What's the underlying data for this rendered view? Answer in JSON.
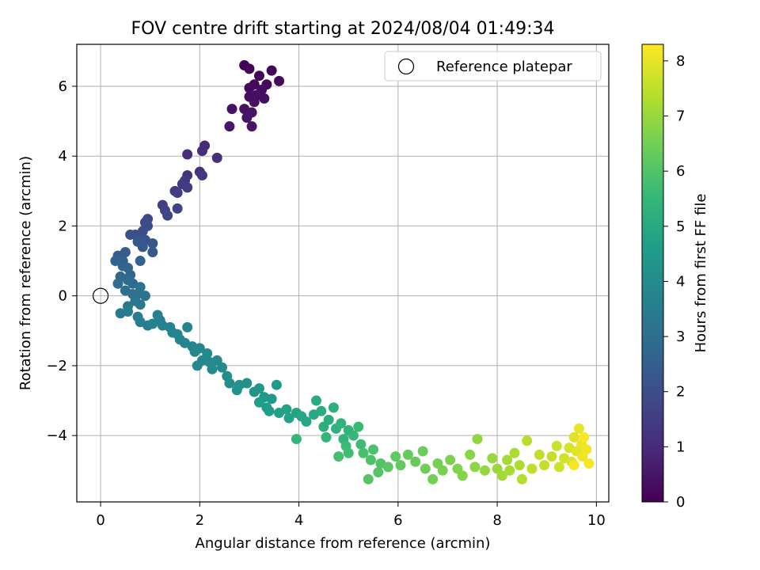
{
  "chart_data": {
    "type": "scatter",
    "title": "FOV centre drift starting at 2024/08/04 01:49:34",
    "xlabel": "Angular distance from reference (arcmin)",
    "ylabel": "Rotation from reference (arcmin)",
    "xlim": [
      -0.48,
      10.25
    ],
    "ylim": [
      -5.9,
      7.2
    ],
    "xticks": [
      0,
      2,
      4,
      6,
      8,
      10
    ],
    "yticks": [
      -4,
      -2,
      0,
      2,
      4,
      6
    ],
    "grid": true,
    "legend": {
      "position": "top-right",
      "entries": [
        "Reference platepar"
      ]
    },
    "reference_point": {
      "x": 0,
      "y": 0
    },
    "colorbar": {
      "label": "Hours from first FF file",
      "colormap": "viridis",
      "range": [
        0,
        8.3
      ],
      "ticks": [
        0,
        1,
        2,
        3,
        4,
        5,
        6,
        7,
        8
      ]
    },
    "colors": {
      "viridis": [
        "#440154",
        "#482878",
        "#3e4989",
        "#31688e",
        "#26828e",
        "#1f9e89",
        "#35b779",
        "#6ece58",
        "#b5de2b",
        "#fde725"
      ]
    },
    "series": [
      {
        "description": "FOV centre positions coloured by hours from first FF file; each point is [x, y, hours]",
        "points": [
          [
            2.9,
            6.6,
            0.05
          ],
          [
            3.0,
            6.5,
            0.08
          ],
          [
            3.45,
            6.45,
            0.1
          ],
          [
            3.2,
            6.3,
            0.12
          ],
          [
            3.1,
            6.05,
            0.15
          ],
          [
            3.35,
            6.05,
            0.18
          ],
          [
            3.6,
            6.15,
            0.2
          ],
          [
            3.0,
            5.95,
            0.22
          ],
          [
            3.25,
            5.9,
            0.25
          ],
          [
            3.15,
            5.75,
            0.28
          ],
          [
            3.0,
            5.7,
            0.3
          ],
          [
            3.3,
            5.65,
            0.32
          ],
          [
            3.1,
            5.55,
            0.35
          ],
          [
            2.9,
            5.35,
            0.38
          ],
          [
            3.05,
            5.25,
            0.4
          ],
          [
            2.65,
            5.35,
            0.42
          ],
          [
            2.95,
            5.1,
            0.45
          ],
          [
            3.05,
            4.85,
            0.48
          ],
          [
            2.6,
            4.85,
            0.5
          ],
          [
            2.1,
            4.3,
            1.0
          ],
          [
            2.05,
            4.15,
            1.05
          ],
          [
            1.75,
            4.05,
            1.1
          ],
          [
            2.35,
            3.95,
            1.15
          ],
          [
            2.0,
            3.55,
            1.2
          ],
          [
            1.75,
            3.45,
            1.25
          ],
          [
            2.05,
            3.45,
            1.3
          ],
          [
            1.7,
            3.3,
            1.35
          ],
          [
            1.65,
            3.2,
            1.4
          ],
          [
            1.75,
            3.1,
            1.45
          ],
          [
            1.5,
            3.0,
            1.5
          ],
          [
            1.55,
            2.95,
            1.55
          ],
          [
            1.25,
            2.6,
            1.6
          ],
          [
            1.3,
            2.45,
            1.65
          ],
          [
            1.55,
            2.5,
            1.7
          ],
          [
            1.35,
            2.3,
            1.75
          ],
          [
            0.95,
            2.2,
            1.8
          ],
          [
            0.9,
            2.1,
            1.85
          ],
          [
            0.95,
            2.0,
            1.9
          ],
          [
            0.85,
            1.85,
            1.95
          ],
          [
            0.7,
            1.75,
            2.0
          ],
          [
            0.8,
            1.7,
            2.05
          ],
          [
            0.6,
            1.75,
            2.1
          ],
          [
            0.9,
            1.6,
            2.15
          ],
          [
            1.05,
            1.5,
            2.2
          ],
          [
            0.75,
            1.55,
            2.25
          ],
          [
            0.85,
            1.4,
            2.3
          ],
          [
            1.05,
            1.25,
            2.35
          ],
          [
            0.5,
            1.25,
            2.4
          ],
          [
            0.35,
            1.15,
            2.45
          ],
          [
            0.45,
            1.0,
            2.5
          ],
          [
            0.3,
            1.0,
            2.55
          ],
          [
            0.8,
            1.0,
            2.6
          ],
          [
            0.45,
            0.85,
            2.65
          ],
          [
            0.55,
            0.8,
            2.7
          ],
          [
            0.6,
            0.6,
            2.75
          ],
          [
            0.4,
            0.55,
            2.8
          ],
          [
            0.55,
            0.45,
            2.85
          ],
          [
            0.35,
            0.35,
            2.9
          ],
          [
            0.65,
            0.35,
            2.95
          ],
          [
            0.5,
            0.15,
            3.0
          ],
          [
            0.65,
            0.05,
            3.05
          ],
          [
            0.75,
            0.05,
            3.1
          ],
          [
            0.8,
            0.25,
            3.15
          ],
          [
            0.9,
            0.0,
            3.2
          ],
          [
            0.7,
            -0.15,
            3.25
          ],
          [
            0.8,
            -0.25,
            3.3
          ],
          [
            0.55,
            -0.3,
            3.35
          ],
          [
            0.4,
            -0.5,
            3.4
          ],
          [
            0.55,
            -0.45,
            3.45
          ],
          [
            0.75,
            -0.6,
            3.5
          ],
          [
            0.8,
            -0.75,
            3.55
          ],
          [
            0.95,
            -0.85,
            3.6
          ],
          [
            1.15,
            -0.55,
            3.62
          ],
          [
            1.2,
            -0.7,
            3.64
          ],
          [
            1.05,
            -0.8,
            3.66
          ],
          [
            1.25,
            -0.85,
            3.68
          ],
          [
            1.4,
            -0.9,
            3.7
          ],
          [
            1.45,
            -1.05,
            3.72
          ],
          [
            1.55,
            -1.1,
            3.74
          ],
          [
            1.75,
            -0.9,
            3.76
          ],
          [
            1.6,
            -1.25,
            3.78
          ],
          [
            1.7,
            -1.35,
            3.8
          ],
          [
            1.85,
            -1.45,
            3.82
          ],
          [
            1.9,
            -1.6,
            3.84
          ],
          [
            2.0,
            -1.5,
            3.86
          ],
          [
            2.15,
            -1.65,
            3.88
          ],
          [
            2.05,
            -1.85,
            3.9
          ],
          [
            1.95,
            -2.0,
            3.92
          ],
          [
            2.2,
            -1.9,
            3.94
          ],
          [
            2.35,
            -1.85,
            3.96
          ],
          [
            2.25,
            -2.1,
            3.98
          ],
          [
            2.45,
            -2.05,
            4.0
          ],
          [
            2.55,
            -2.3,
            4.05
          ],
          [
            2.6,
            -2.5,
            4.1
          ],
          [
            2.8,
            -2.55,
            4.15
          ],
          [
            2.95,
            -2.5,
            4.2
          ],
          [
            2.75,
            -2.7,
            4.25
          ],
          [
            3.1,
            -2.75,
            4.3
          ],
          [
            3.2,
            -2.65,
            4.35
          ],
          [
            3.3,
            -2.9,
            4.4
          ],
          [
            3.45,
            -2.95,
            4.45
          ],
          [
            3.35,
            -3.2,
            4.5
          ],
          [
            3.55,
            -2.55,
            4.55
          ],
          [
            3.2,
            -3.05,
            4.6
          ],
          [
            3.4,
            -3.3,
            4.65
          ],
          [
            3.6,
            -3.35,
            4.7
          ],
          [
            3.75,
            -3.25,
            4.75
          ],
          [
            3.8,
            -3.5,
            4.8
          ],
          [
            3.95,
            -3.35,
            4.85
          ],
          [
            4.05,
            -3.45,
            4.9
          ],
          [
            4.15,
            -3.6,
            4.95
          ],
          [
            4.3,
            -3.4,
            5.0
          ],
          [
            4.35,
            -3.0,
            5.05
          ],
          [
            4.45,
            -3.3,
            5.1
          ],
          [
            4.6,
            -3.55,
            5.15
          ],
          [
            4.5,
            -3.75,
            5.2
          ],
          [
            4.7,
            -3.2,
            5.25
          ],
          [
            4.75,
            -3.8,
            5.3
          ],
          [
            4.85,
            -3.65,
            5.35
          ],
          [
            5.0,
            -3.85,
            5.4
          ],
          [
            4.9,
            -4.1,
            5.45
          ],
          [
            3.95,
            -4.1,
            5.48
          ],
          [
            4.55,
            -4.05,
            5.5
          ],
          [
            5.1,
            -4.0,
            5.55
          ],
          [
            5.2,
            -3.75,
            5.6
          ],
          [
            4.95,
            -4.3,
            5.65
          ],
          [
            5.25,
            -4.25,
            5.7
          ],
          [
            5.0,
            -4.5,
            5.75
          ],
          [
            4.8,
            -4.6,
            5.8
          ],
          [
            5.3,
            -4.5,
            5.85
          ],
          [
            5.5,
            -4.4,
            5.9
          ],
          [
            5.45,
            -4.7,
            5.95
          ],
          [
            5.65,
            -4.8,
            6.0
          ],
          [
            5.6,
            -5.05,
            6.05
          ],
          [
            5.4,
            -5.25,
            6.1
          ],
          [
            5.8,
            -4.9,
            6.15
          ],
          [
            5.95,
            -4.6,
            6.2
          ],
          [
            6.05,
            -4.85,
            6.25
          ],
          [
            6.2,
            -4.55,
            6.3
          ],
          [
            6.35,
            -4.75,
            6.35
          ],
          [
            6.5,
            -4.45,
            6.4
          ],
          [
            6.55,
            -4.95,
            6.45
          ],
          [
            6.7,
            -5.25,
            6.5
          ],
          [
            6.8,
            -4.8,
            6.55
          ],
          [
            6.9,
            -5.0,
            6.6
          ],
          [
            7.05,
            -4.7,
            6.65
          ],
          [
            7.2,
            -4.95,
            6.7
          ],
          [
            7.3,
            -5.15,
            6.75
          ],
          [
            7.45,
            -4.55,
            6.8
          ],
          [
            7.55,
            -4.9,
            6.85
          ],
          [
            7.6,
            -4.1,
            6.9
          ],
          [
            7.75,
            -5.0,
            6.95
          ],
          [
            7.9,
            -4.65,
            7.0
          ],
          [
            8.0,
            -4.95,
            7.05
          ],
          [
            8.1,
            -5.15,
            7.1
          ],
          [
            8.2,
            -4.7,
            7.15
          ],
          [
            8.25,
            -5.0,
            7.2
          ],
          [
            8.35,
            -4.5,
            7.25
          ],
          [
            8.45,
            -4.85,
            7.3
          ],
          [
            8.5,
            -5.25,
            7.35
          ],
          [
            8.6,
            -4.15,
            7.4
          ],
          [
            8.7,
            -4.95,
            7.45
          ],
          [
            8.85,
            -4.55,
            7.5
          ],
          [
            8.95,
            -4.85,
            7.55
          ],
          [
            9.1,
            -4.6,
            7.6
          ],
          [
            9.2,
            -4.3,
            7.65
          ],
          [
            9.25,
            -4.9,
            7.7
          ],
          [
            9.35,
            -4.65,
            7.75
          ],
          [
            9.45,
            -4.35,
            7.8
          ],
          [
            9.5,
            -4.75,
            7.85
          ],
          [
            9.55,
            -4.05,
            7.9
          ],
          [
            9.6,
            -4.45,
            7.95
          ],
          [
            9.65,
            -3.8,
            8.0
          ],
          [
            9.7,
            -4.25,
            8.05
          ],
          [
            9.72,
            -4.6,
            8.1
          ],
          [
            9.8,
            -4.4,
            8.15
          ],
          [
            9.85,
            -4.8,
            8.2
          ],
          [
            9.55,
            -4.85,
            8.22
          ],
          [
            9.75,
            -4.05,
            8.25
          ]
        ]
      }
    ]
  }
}
